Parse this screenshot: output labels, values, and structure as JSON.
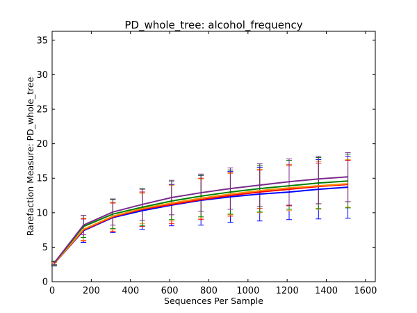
{
  "chart_data": {
    "type": "line",
    "title": "PD_whole_tree: alcohol_frequency",
    "xlabel": "Sequences Per Sample",
    "ylabel": "Rarefaction Measure: PD_whole_tree",
    "xlim": [
      0,
      1650
    ],
    "ylim": [
      0,
      36.3
    ],
    "x_ticks": [
      0,
      200,
      400,
      600,
      800,
      1000,
      1200,
      1400,
      1600
    ],
    "y_ticks": [
      0,
      5,
      10,
      15,
      20,
      25,
      30,
      35
    ],
    "grid": false,
    "legend": false,
    "x": [
      10,
      160,
      310,
      460,
      610,
      760,
      910,
      1060,
      1210,
      1360,
      1510
    ],
    "series": [
      {
        "color": "#0000ff",
        "values": [
          2.6,
          7.4,
          9.3,
          10.3,
          11.1,
          11.8,
          12.3,
          12.7,
          13.0,
          13.4,
          13.7
        ],
        "lower": [
          2.3,
          5.7,
          7.1,
          7.6,
          8.1,
          8.2,
          8.6,
          8.8,
          9.0,
          9.1,
          9.2
        ],
        "upper": [
          2.9,
          9.1,
          11.5,
          13.0,
          14.1,
          15.4,
          16.0,
          16.6,
          17.0,
          17.7,
          18.2
        ]
      },
      {
        "color": "#ff0000",
        "values": [
          2.6,
          7.5,
          9.4,
          10.5,
          11.2,
          11.9,
          12.5,
          13.0,
          13.4,
          13.8,
          14.1
        ],
        "lower": [
          2.4,
          5.9,
          7.3,
          8.0,
          8.4,
          9.0,
          9.5,
          10.6,
          11.0,
          11.3,
          11.6
        ],
        "upper": [
          2.8,
          9.1,
          11.4,
          13.0,
          14.0,
          15.0,
          15.8,
          16.2,
          16.8,
          17.2,
          17.6
        ]
      },
      {
        "color": "#ff8c00",
        "values": [
          2.6,
          7.6,
          9.5,
          10.6,
          11.4,
          12.1,
          12.7,
          13.2,
          13.6,
          13.9,
          14.2
        ],
        "lower": [
          2.4,
          6.0,
          7.5,
          8.4,
          8.8,
          9.2,
          9.7,
          10.0,
          10.3,
          10.5,
          10.8
        ],
        "upper": [
          2.8,
          9.2,
          11.5,
          12.8,
          14.0,
          14.9,
          15.7,
          16.3,
          17.0,
          17.4,
          17.7
        ]
      },
      {
        "color": "#008000",
        "values": [
          2.7,
          8.0,
          9.8,
          10.8,
          11.7,
          12.4,
          13.0,
          13.5,
          13.9,
          14.3,
          14.6
        ],
        "lower": [
          2.4,
          6.4,
          7.7,
          8.1,
          9.0,
          9.4,
          9.8,
          10.1,
          10.5,
          10.6,
          10.7
        ],
        "upper": [
          3.0,
          9.6,
          11.9,
          13.5,
          14.5,
          15.4,
          16.2,
          16.9,
          17.6,
          18.0,
          18.5
        ]
      },
      {
        "color": "#7b2a8c",
        "values": [
          2.7,
          8.2,
          10.1,
          11.2,
          12.2,
          12.9,
          13.5,
          14.0,
          14.5,
          14.9,
          15.2
        ],
        "lower": [
          2.5,
          6.8,
          8.2,
          8.9,
          9.7,
          10.2,
          10.5,
          10.9,
          11.1,
          11.3,
          11.6
        ],
        "upper": [
          2.9,
          9.6,
          12.0,
          13.4,
          14.7,
          15.6,
          16.5,
          17.1,
          17.8,
          18.2,
          18.7
        ]
      }
    ]
  }
}
